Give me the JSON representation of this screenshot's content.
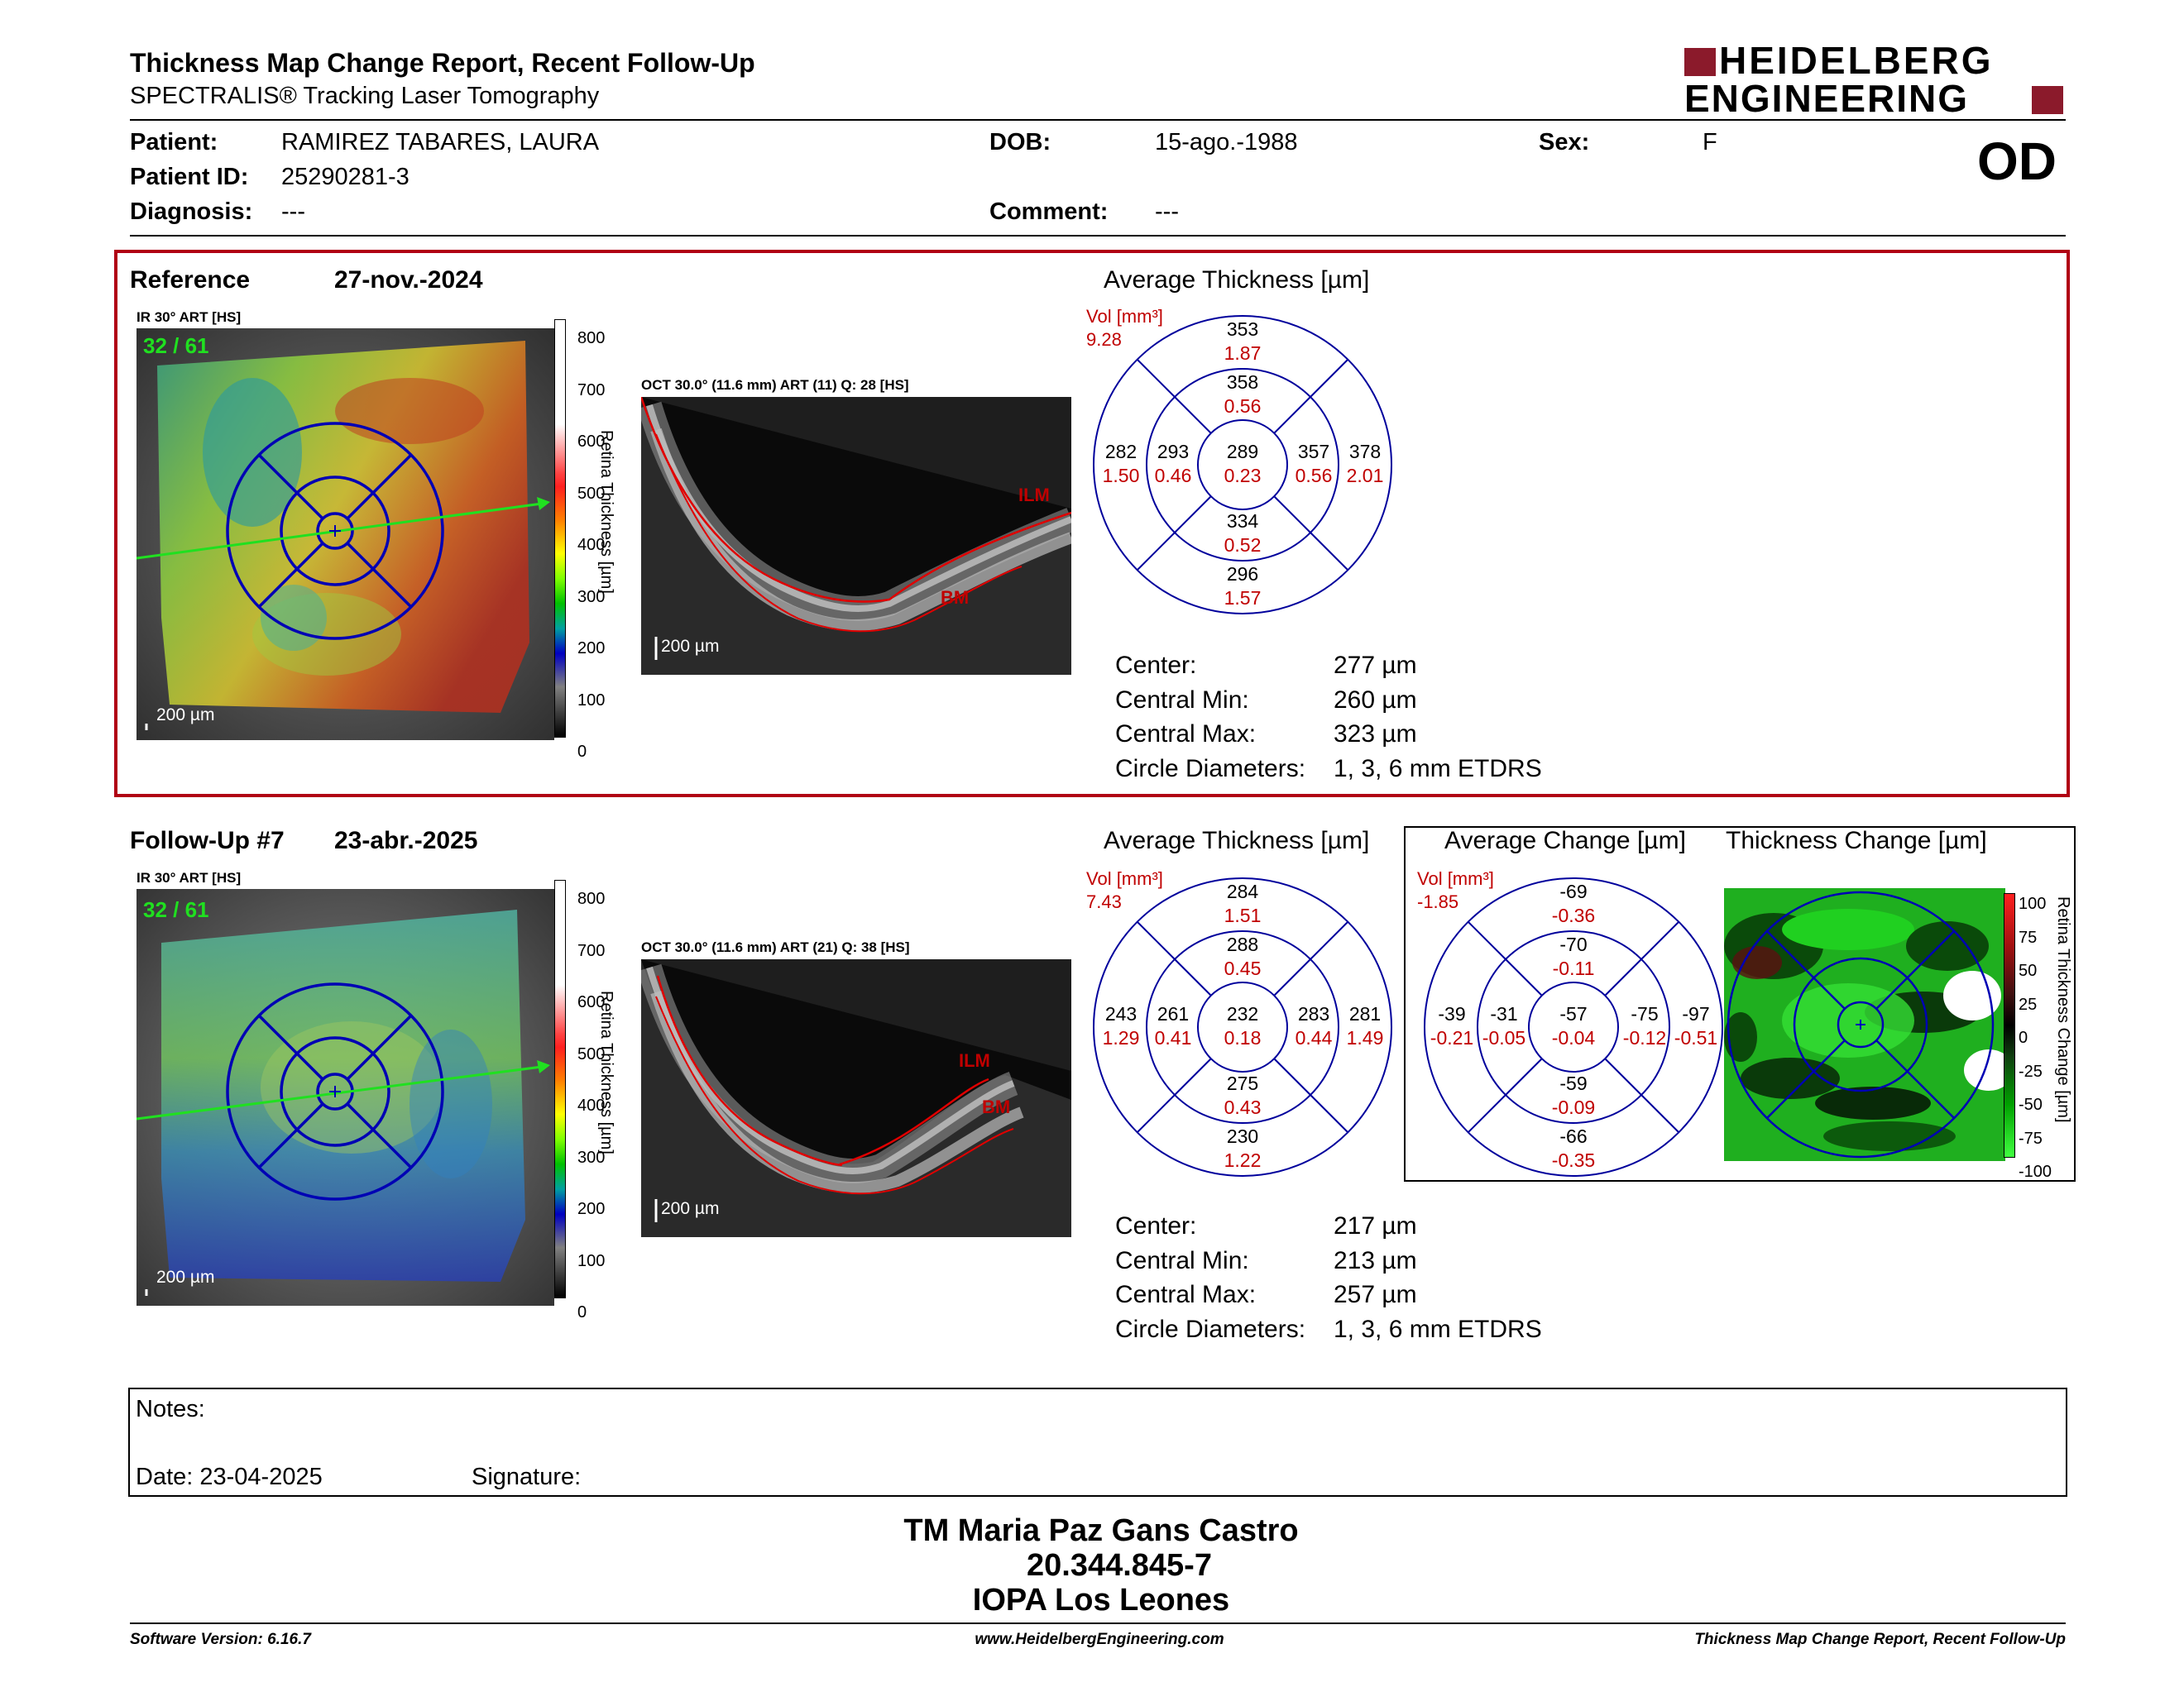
{
  "header": {
    "title": "Thickness Map Change Report, Recent Follow-Up",
    "subtitle": "SPECTRALIS® Tracking Laser Tomography",
    "logo_line1": "HEIDELBERG",
    "logo_line2": "ENGINEERING",
    "logo_color": "#8b1a2b"
  },
  "patient": {
    "patient_label": "Patient:",
    "patient_value": "RAMIREZ TABARES, LAURA",
    "id_label": "Patient ID:",
    "id_value": "25290281-3",
    "diagnosis_label": "Diagnosis:",
    "diagnosis_value": "---",
    "dob_label": "DOB:",
    "dob_value": "15-ago.-1988",
    "comment_label": "Comment:",
    "comment_value": "---",
    "sex_label": "Sex:",
    "sex_value": "F",
    "eye": "OD"
  },
  "reference": {
    "label": "Reference",
    "date": "27-nov.-2024",
    "ir_label": "IR 30° ART [HS]",
    "frame": "32 / 61",
    "scale_label": "200 µm",
    "colorbar_ticks": [
      "800",
      "700",
      "600",
      "500",
      "400",
      "300",
      "200",
      "100",
      "0"
    ],
    "colorbar_title": "Retina Thickness [µm]",
    "oct_label": "OCT 30.0° (11.6 mm) ART (11) Q: 28 [HS]",
    "oct_scale": "200 µm",
    "ilm": "ILM",
    "bm": "BM",
    "avg_title": "Average Thickness [µm]",
    "vol_label": "Vol [mm³]",
    "vol_value": "9.28",
    "sectors": {
      "outer_sup": [
        "353",
        "1.87"
      ],
      "inner_sup": [
        "358",
        "0.56"
      ],
      "outer_temp": [
        "282",
        "1.50"
      ],
      "inner_temp": [
        "293",
        "0.46"
      ],
      "center": [
        "289",
        "0.23"
      ],
      "inner_nasal": [
        "357",
        "0.56"
      ],
      "outer_nasal": [
        "378",
        "2.01"
      ],
      "inner_inf": [
        "334",
        "0.52"
      ],
      "outer_inf": [
        "296",
        "1.57"
      ]
    },
    "stats": [
      {
        "label": "Center:",
        "value": "277 µm"
      },
      {
        "label": "Central Min:",
        "value": "260 µm"
      },
      {
        "label": "Central Max:",
        "value": "323 µm"
      },
      {
        "label": "Circle Diameters:",
        "value": "1, 3, 6 mm ETDRS"
      }
    ]
  },
  "followup": {
    "label": "Follow-Up #7",
    "date": "23-abr.-2025",
    "ir_label": "IR 30° ART [HS]",
    "frame": "32 / 61",
    "scale_label": "200 µm",
    "colorbar_ticks": [
      "800",
      "700",
      "600",
      "500",
      "400",
      "300",
      "200",
      "100",
      "0"
    ],
    "colorbar_title": "Retina Thickness [µm]",
    "oct_label": "OCT 30.0° (11.6 mm) ART (21) Q: 38 [HS]",
    "oct_scale": "200 µm",
    "ilm": "ILM",
    "bm": "BM",
    "avg_title": "Average Thickness [µm]",
    "vol_label": "Vol [mm³]",
    "vol_value": "7.43",
    "sectors": {
      "outer_sup": [
        "284",
        "1.51"
      ],
      "inner_sup": [
        "288",
        "0.45"
      ],
      "outer_temp": [
        "243",
        "1.29"
      ],
      "inner_temp": [
        "261",
        "0.41"
      ],
      "center": [
        "232",
        "0.18"
      ],
      "inner_nasal": [
        "283",
        "0.44"
      ],
      "outer_nasal": [
        "281",
        "1.49"
      ],
      "inner_inf": [
        "275",
        "0.43"
      ],
      "outer_inf": [
        "230",
        "1.22"
      ]
    },
    "stats": [
      {
        "label": "Center:",
        "value": "217 µm"
      },
      {
        "label": "Central Min:",
        "value": "213 µm"
      },
      {
        "label": "Central Max:",
        "value": "257 µm"
      },
      {
        "label": "Circle Diameters:",
        "value": "1, 3, 6 mm ETDRS"
      }
    ],
    "change_title": "Average Change [µm]",
    "change_vol_label": "Vol [mm³]",
    "change_vol_value": "-1.85",
    "change_sectors": {
      "outer_sup": [
        "-69",
        "-0.36"
      ],
      "inner_sup": [
        "-70",
        "-0.11"
      ],
      "outer_temp": [
        "-39",
        "-0.21"
      ],
      "inner_temp": [
        "-31",
        "-0.05"
      ],
      "center": [
        "-57",
        "-0.04"
      ],
      "inner_nasal": [
        "-75",
        "-0.12"
      ],
      "outer_nasal": [
        "-97",
        "-0.51"
      ],
      "inner_inf": [
        "-59",
        "-0.09"
      ],
      "outer_inf": [
        "-66",
        "-0.35"
      ]
    },
    "thick_change_title": "Thickness Change [µm]",
    "change_colorbar_ticks": [
      "100",
      "75",
      "50",
      "25",
      "0",
      "-25",
      "-50",
      "-75",
      "-100"
    ],
    "change_colorbar_title": "Retina Thickness Change [µm]"
  },
  "notes": {
    "notes_label": "Notes:",
    "date_label": "Date: 23-04-2025",
    "signature_label": "Signature:"
  },
  "signer": {
    "line1": "TM Maria Paz Gans Castro",
    "line2": "20.344.845-7",
    "line3": "IOPA Los Leones"
  },
  "footer": {
    "software": "Software Version: 6.16.7",
    "website": "www.HeidelbergEngineering.com",
    "report": "Thickness Map Change Report, Recent Follow-Up"
  }
}
